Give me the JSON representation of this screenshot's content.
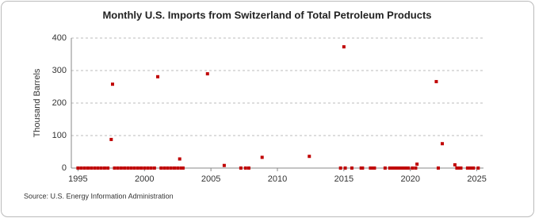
{
  "chart_data": {
    "type": "scatter",
    "title": "Monthly U.S. Imports from Switzerland of Total Petroleum Products",
    "y_label": "Thousand Barrels",
    "source": "Source: U.S. Energy Information Administration",
    "color": "#c00000",
    "grid": true,
    "xlim": [
      1994.5,
      2025.5
    ],
    "ylim": [
      0,
      400
    ],
    "xticks": [
      1995,
      2000,
      2005,
      2010,
      2015,
      2020,
      2025
    ],
    "yticks": [
      0,
      100,
      200,
      300,
      400
    ],
    "x": [
      1995,
      1995.25,
      1995.5,
      1995.75,
      1996,
      1996.25,
      1996.5,
      1996.75,
      1997,
      1997.25,
      1997.5,
      1997.6,
      1997.75,
      1998,
      1998.25,
      1998.5,
      1998.75,
      1999,
      1999.25,
      1999.5,
      1999.75,
      2000,
      2000.25,
      2000.5,
      2000.75,
      2001,
      2001.25,
      2001.5,
      2001.75,
      2002,
      2002.25,
      2002.5,
      2002.65,
      2002.75,
      2002.9,
      2004.74,
      2006.0,
      2007.25,
      2007.6,
      2007.85,
      2008.85,
      2012.4,
      2014.75,
      2015.0,
      2015.1,
      2015.6,
      2016.3,
      2016.4,
      2017.0,
      2017.15,
      2017.3,
      2018.1,
      2018.45,
      2018.6,
      2018.75,
      2018.9,
      2019.05,
      2019.2,
      2019.35,
      2019.5,
      2019.65,
      2019.85,
      2020.15,
      2020.4,
      2020.5,
      2021.95,
      2022.1,
      2022.4,
      2023.35,
      2023.5,
      2023.65,
      2023.8,
      2024.3,
      2024.45,
      2024.6,
      2024.75,
      2025.1
    ],
    "values": [
      0,
      0,
      0,
      0,
      0,
      0,
      0,
      0,
      0,
      0,
      88,
      258,
      0,
      0,
      0,
      0,
      0,
      0,
      0,
      0,
      0,
      0,
      0,
      0,
      0,
      281,
      0,
      0,
      0,
      0,
      0,
      0,
      28,
      0,
      0,
      290,
      8,
      0,
      0,
      0,
      33,
      36,
      0,
      373,
      0,
      0,
      0,
      0,
      0,
      0,
      0,
      0,
      0,
      0,
      0,
      0,
      0,
      0,
      0,
      0,
      0,
      0,
      0,
      0,
      12,
      266,
      0,
      75,
      10,
      0,
      0,
      0,
      0,
      0,
      0,
      0,
      0
    ]
  }
}
